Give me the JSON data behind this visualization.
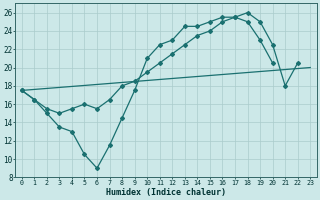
{
  "xlabel": "Humidex (Indice chaleur)",
  "xlim": [
    -0.5,
    23.5
  ],
  "ylim": [
    8,
    27
  ],
  "yticks": [
    8,
    10,
    12,
    14,
    16,
    18,
    20,
    22,
    24,
    26
  ],
  "xticks": [
    0,
    1,
    2,
    3,
    4,
    5,
    6,
    7,
    8,
    9,
    10,
    11,
    12,
    13,
    14,
    15,
    16,
    17,
    18,
    19,
    20,
    21,
    22,
    23
  ],
  "bg_color": "#cce8e8",
  "line_color": "#1a7070",
  "grid_color": "#aacccc",
  "line1_x": [
    0,
    1,
    2,
    3,
    4,
    5,
    6,
    7,
    8,
    9,
    10,
    11,
    12,
    13,
    14,
    15,
    16,
    17,
    18,
    19,
    20,
    21,
    22
  ],
  "line1_y": [
    17.5,
    16.5,
    15.0,
    13.5,
    13.0,
    10.5,
    9.0,
    11.5,
    14.5,
    17.5,
    21.0,
    22.5,
    23.0,
    24.5,
    24.5,
    25.0,
    25.5,
    25.5,
    26.0,
    25.0,
    22.5,
    18.0,
    20.5
  ],
  "line2_x": [
    0,
    1,
    2,
    3,
    4,
    5,
    6,
    7,
    8,
    9,
    10,
    11,
    12,
    13,
    14,
    15,
    16,
    17,
    18,
    19,
    20
  ],
  "line2_y": [
    17.5,
    16.5,
    15.5,
    15.0,
    15.5,
    16.0,
    15.5,
    16.5,
    18.0,
    18.5,
    19.5,
    20.5,
    21.5,
    22.5,
    23.5,
    24.0,
    25.0,
    25.5,
    25.0,
    23.0,
    20.5
  ],
  "line3_x": [
    0,
    23
  ],
  "line3_y": [
    17.5,
    20.0
  ]
}
